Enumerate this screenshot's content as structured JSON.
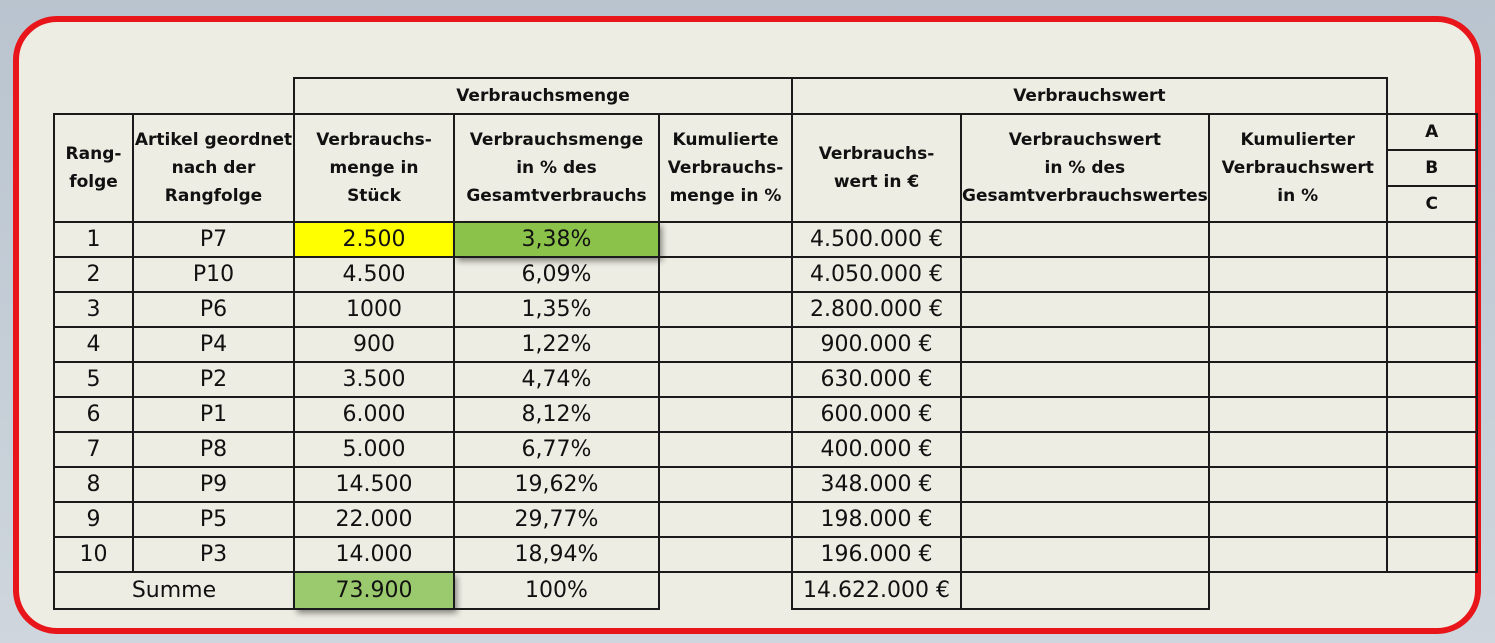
{
  "group_headers": {
    "menge": "Verbrauchsmenge",
    "wert": "Verbrauchswert"
  },
  "columns": {
    "rang": "Rang-\nfolge",
    "artikel": "Artikel geordnet\nnach der\nRangfolge",
    "menge_stueck": "Verbrauchs-\nmenge in\nStück",
    "menge_prozent": "Verbrauchsmenge\nin % des\nGesamtverbrauchs",
    "menge_kumuliert": "Kumulierte\nVerbrauchs-\nmenge in %",
    "wert_euro": "Verbrauchs-\nwert in €",
    "wert_prozent": "Verbrauchswert\nin % des\nGesamtverbrauchswertes",
    "wert_kumuliert": "Kumulierter\nVerbrauchswert\nin %"
  },
  "abc": [
    "A",
    "B",
    "C"
  ],
  "rows": [
    {
      "rang": "1",
      "artikel": "P7",
      "stueck": "2.500",
      "prozent": "3,38%",
      "wert": "4.500.000 €"
    },
    {
      "rang": "2",
      "artikel": "P10",
      "stueck": "4.500",
      "prozent": "6,09%",
      "wert": "4.050.000 €"
    },
    {
      "rang": "3",
      "artikel": "P6",
      "stueck": "1000",
      "prozent": "1,35%",
      "wert": "2.800.000 €"
    },
    {
      "rang": "4",
      "artikel": "P4",
      "stueck": "900",
      "prozent": "1,22%",
      "wert": "900.000 €"
    },
    {
      "rang": "5",
      "artikel": "P2",
      "stueck": "3.500",
      "prozent": "4,74%",
      "wert": "630.000 €"
    },
    {
      "rang": "6",
      "artikel": "P1",
      "stueck": "6.000",
      "prozent": "8,12%",
      "wert": "600.000 €"
    },
    {
      "rang": "7",
      "artikel": "P8",
      "stueck": "5.000",
      "prozent": "6,77%",
      "wert": "400.000 €"
    },
    {
      "rang": "8",
      "artikel": "P9",
      "stueck": "14.500",
      "prozent": "19,62%",
      "wert": "348.000 €"
    },
    {
      "rang": "9",
      "artikel": "P5",
      "stueck": "22.000",
      "prozent": "29,77%",
      "wert": "198.000 €"
    },
    {
      "rang": "10",
      "artikel": "P3",
      "stueck": "14.000",
      "prozent": "18,94%",
      "wert": "196.000 €"
    }
  ],
  "summe": {
    "label": "Summe",
    "stueck": "73.900",
    "prozent": "100%",
    "wert": "14.622.000 €"
  },
  "colors": {
    "frame_border": "#e8151a",
    "highlight_yellow": "#ffff00",
    "highlight_green": "#8bc34a"
  }
}
